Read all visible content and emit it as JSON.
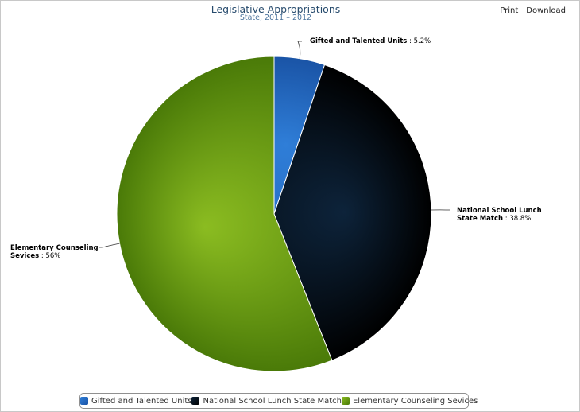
{
  "toolbar": {
    "print_label": "Print",
    "download_label": "Download"
  },
  "chart_data": {
    "type": "pie",
    "title": "Legislative Appropriations",
    "subtitle": "State, 2011 – 2012",
    "slices": [
      {
        "label_lines": [
          "Gifted and Talented Units"
        ],
        "legend": "Gifted and Talented Units",
        "value": 5.2,
        "value_text": " : 5.2%",
        "color": "#2f7ed8",
        "color_dark": "#1a54a6"
      },
      {
        "label_lines": [
          "National School Lunch",
          "State Match"
        ],
        "legend": "National School Lunch State Match",
        "value": 38.8,
        "value_text": " : 38.8%",
        "color": "#0d233a",
        "color_dark": "#000000"
      },
      {
        "label_lines": [
          "Elementary Counseling",
          "Sevices"
        ],
        "legend": "Elementary Counseling Sevices",
        "value": 56,
        "value_text": " : 56%",
        "color": "#8bbc21",
        "color_dark": "#4a7a08"
      }
    ],
    "legend_position": "bottom",
    "start_angle_deg": 0,
    "direction": "clockwise"
  }
}
